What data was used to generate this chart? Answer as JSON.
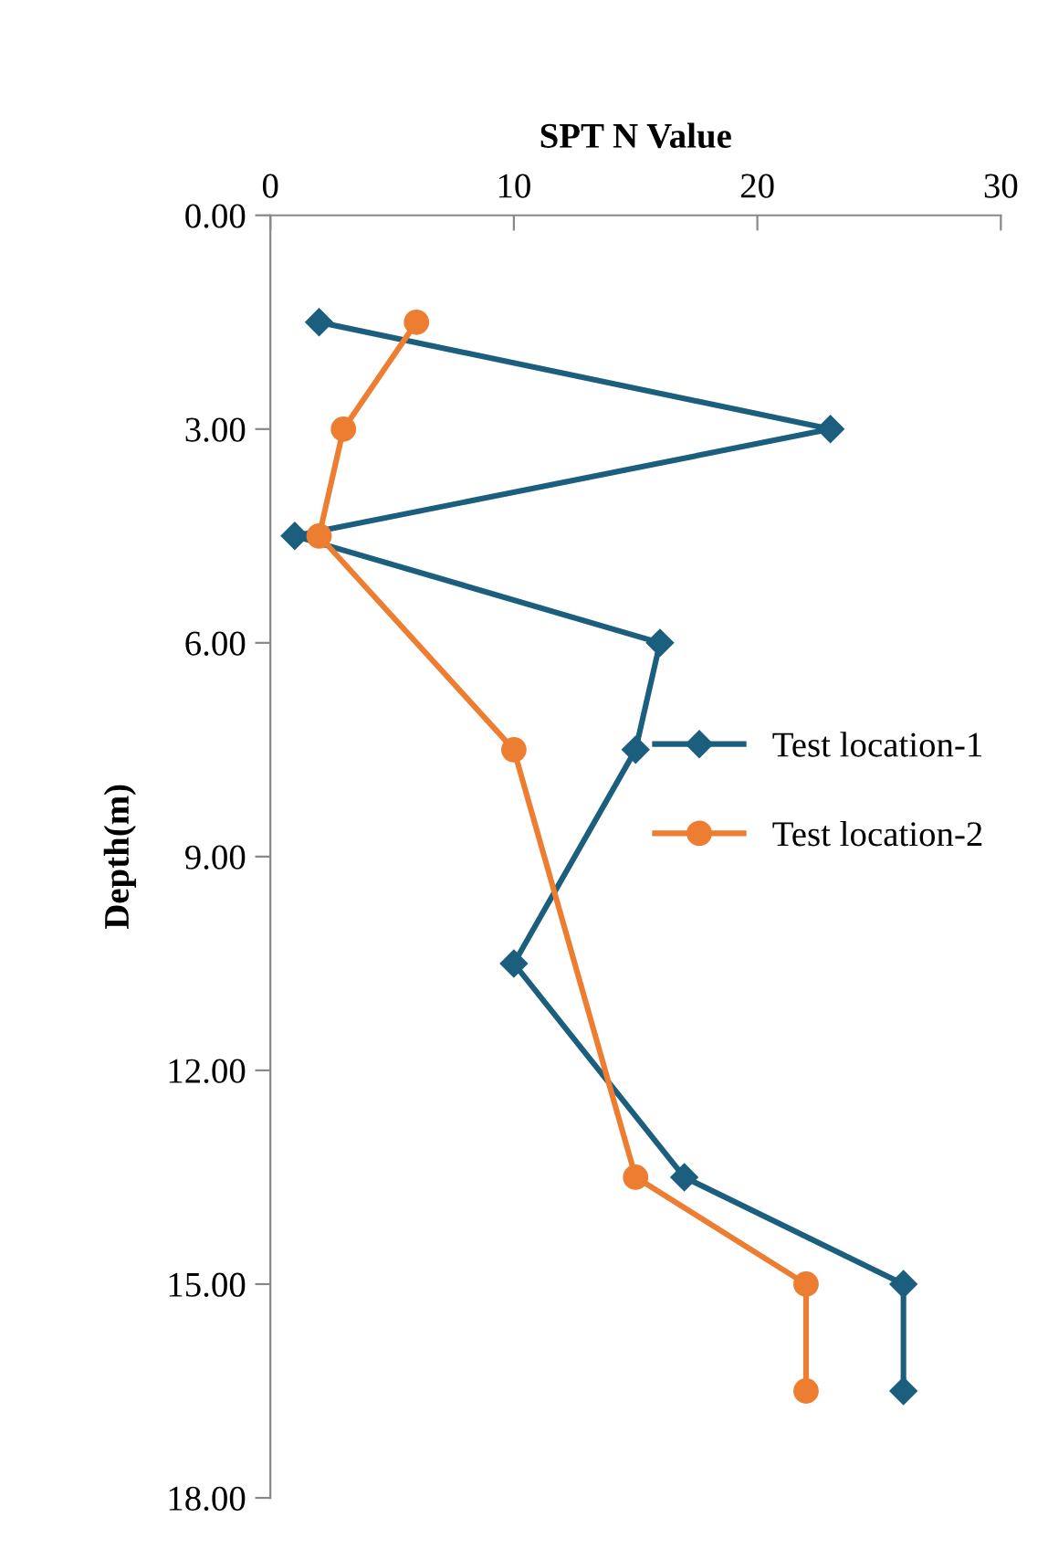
{
  "chart_data": {
    "type": "line",
    "xlabel": "SPT N Value",
    "ylabel": "Depth(m)",
    "xlim": [
      0,
      30
    ],
    "xticks": [
      0,
      10,
      20,
      30
    ],
    "ylim": [
      18,
      0
    ],
    "yticks": [
      {
        "value": 0,
        "label": "0.00"
      },
      {
        "value": 3,
        "label": "3.00"
      },
      {
        "value": 6,
        "label": "6.00"
      },
      {
        "value": 9,
        "label": "9.00"
      },
      {
        "value": 12,
        "label": "12.00"
      },
      {
        "value": 15,
        "label": "15.00"
      },
      {
        "value": 18,
        "label": "18.00"
      }
    ],
    "grid": false,
    "legend": "right",
    "line_style": "solid",
    "series": [
      {
        "name": "Test location-1",
        "color": "#1b5e7e",
        "marker": "diamond",
        "x": [
          2,
          23,
          1,
          16,
          15,
          10,
          17,
          26,
          26
        ],
        "values": [
          1.5,
          3.0,
          4.5,
          6.0,
          7.5,
          10.5,
          13.5,
          15.0,
          16.5
        ]
      },
      {
        "name": "Test location-2",
        "color": "#ed7d31",
        "marker": "circle",
        "x": [
          6,
          3,
          2,
          10,
          15,
          22,
          22
        ],
        "values": [
          1.5,
          3.0,
          4.5,
          7.5,
          13.5,
          15.0,
          16.5
        ]
      }
    ]
  }
}
